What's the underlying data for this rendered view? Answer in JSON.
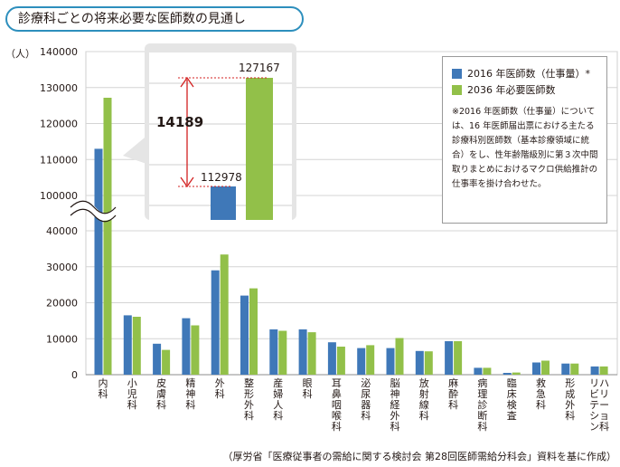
{
  "title": "診療科ごとの将来必要な医師数の見通し",
  "source_note": "（厚労省「医療従事者の需給に関する検討会 第28回医師需給分科会」資料を基に作成）",
  "colors": {
    "series_2016": "#3f78b8",
    "series_2036": "#92c049",
    "title_border": "#2d8fbd",
    "callout_line": "#d32020"
  },
  "legend": {
    "items": [
      {
        "label": "2016 年医師数（仕事量）*",
        "color": "#3f78b8"
      },
      {
        "label": "2036 年必要医師数",
        "color": "#92c049"
      }
    ],
    "note": "※2016 年医師数（仕事量）については、16 年医師届出票における主たる診療科別医師数（基本診療領域に統合）をし、性年齢階級別に第３次中間取りまとめにおけるマクロ供給推計の仕事率を掛け合わせた。"
  },
  "chart_data": {
    "type": "bar",
    "ylabel": "（人）",
    "y_ticks_lower": [
      0,
      10000,
      20000,
      30000,
      40000
    ],
    "y_ticks_upper": [
      100000,
      110000,
      120000,
      130000,
      140000
    ],
    "axis_break": "40000-100000",
    "grid": true,
    "legend_position": "top-right",
    "categories": [
      "内科",
      "小児科",
      "皮膚科",
      "精神科",
      "外科",
      "整形外科",
      "産婦人科",
      "眼科",
      "耳鼻咽喉科",
      "泌尿器科",
      "脳神経外科",
      "放射線科",
      "麻酔科",
      "病理診断科",
      "臨床検査",
      "救急科",
      "形成外科",
      "リハビリテーション科"
    ],
    "series": [
      {
        "name": "2016 年医師数（仕事量）*",
        "values": [
          112978,
          16500,
          8600,
          15700,
          29000,
          22000,
          12600,
          12600,
          9000,
          7400,
          7400,
          6600,
          9300,
          1900,
          500,
          3400,
          3100,
          2300
        ]
      },
      {
        "name": "2036 年必要医師数",
        "values": [
          127167,
          16100,
          6900,
          13700,
          33400,
          24000,
          12200,
          11800,
          7800,
          8200,
          10200,
          6500,
          9300,
          1900,
          600,
          3900,
          3100,
          2300
        ]
      }
    ],
    "annotations": {
      "value_2016": "112978",
      "value_2036": "127167",
      "difference": "14189"
    }
  }
}
